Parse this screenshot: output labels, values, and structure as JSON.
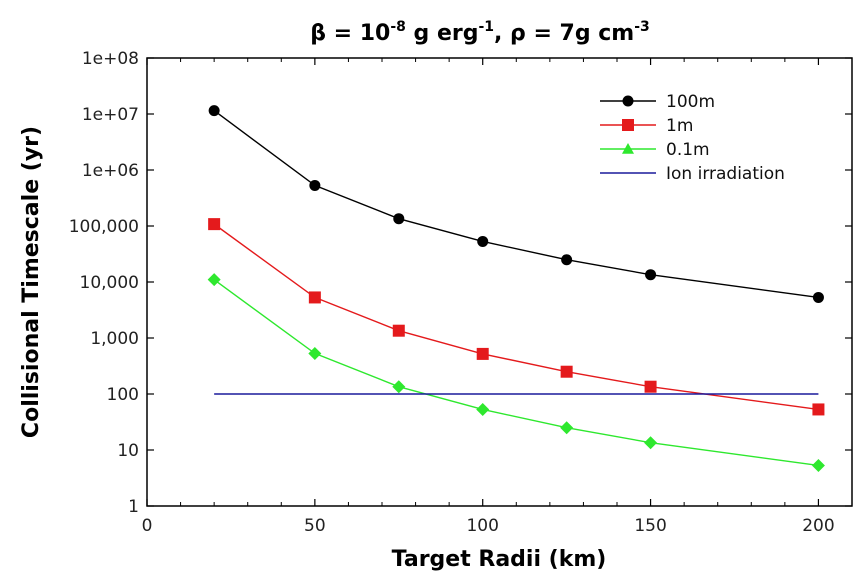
{
  "chart_data": {
    "type": "line",
    "title_parts": {
      "a": "β = 10",
      "a_sup": "-8",
      "b": " g erg",
      "b_sup": "-1",
      "c": ", ρ = 7g cm",
      "c_sup": "-3"
    },
    "xlabel": "Target Radii (km)",
    "ylabel": "Collisional Timescale (yr)",
    "xlim": [
      0,
      210
    ],
    "ylim": [
      1,
      100000000
    ],
    "yscale": "log",
    "xticks": [
      0,
      50,
      100,
      150,
      200
    ],
    "xtick_labels": [
      "0",
      "50",
      "100",
      "150",
      "200"
    ],
    "yticks": [
      1,
      10,
      100,
      1000,
      10000,
      100000,
      1000000,
      10000000,
      100000000
    ],
    "ytick_labels": [
      "1",
      "10",
      "100",
      "1,000",
      "10,000",
      "100,000",
      "1e+06",
      "1e+07",
      "1e+08"
    ],
    "grid": false,
    "legend_position": "top-right",
    "series": [
      {
        "name": "100m",
        "color": "#000000",
        "marker": "circle",
        "x": [
          20,
          50,
          75,
          100,
          125,
          150,
          200
        ],
        "y": [
          11500000,
          530000,
          135000,
          53000,
          25000,
          13500,
          5300
        ]
      },
      {
        "name": "1m",
        "color": "#e41a1c",
        "marker": "square",
        "x": [
          20,
          50,
          75,
          100,
          125,
          150,
          200
        ],
        "y": [
          108000,
          5300,
          1350,
          520,
          250,
          135,
          53
        ]
      },
      {
        "name": "0.1m",
        "color": "#2ee82e",
        "marker": "diamond",
        "legend_marker": "triangle",
        "x": [
          20,
          50,
          75,
          100,
          125,
          150,
          200
        ],
        "y": [
          11000,
          530,
          135,
          53,
          25,
          13.5,
          5.3
        ]
      },
      {
        "name": "Ion irradiation",
        "color": "#1a1a9c",
        "marker": "none",
        "x": [
          20,
          200
        ],
        "y": [
          100,
          100
        ]
      }
    ]
  }
}
